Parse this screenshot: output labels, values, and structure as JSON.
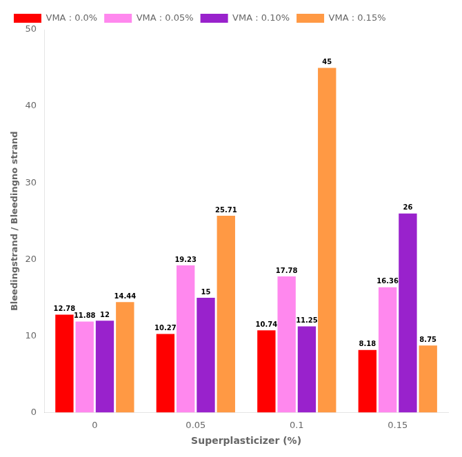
{
  "chart_data": {
    "type": "bar",
    "categories": [
      "0",
      "0.05",
      "0.1",
      "0.15"
    ],
    "series": [
      {
        "name": "VMA : 0.0%",
        "color": "#FF0000",
        "values": [
          12.78,
          10.27,
          10.74,
          8.18
        ]
      },
      {
        "name": "VMA : 0.05%",
        "color": "#FF88EE",
        "values": [
          11.88,
          19.23,
          17.78,
          16.36
        ]
      },
      {
        "name": "VMA : 0.10%",
        "color": "#9922CC",
        "values": [
          12,
          15,
          11.25,
          26
        ]
      },
      {
        "name": "VMA : 0.15%",
        "color": "#FF9944",
        "values": [
          14.44,
          25.71,
          45,
          8.75
        ]
      }
    ],
    "xlabel": "Superplasticizer (%)",
    "ylabel": "Bleedingstrand / Bleedingno strand",
    "ylim": [
      0,
      50
    ],
    "yticks": [
      0,
      10,
      20,
      30,
      40,
      50
    ],
    "grid": false,
    "legend": "upper left",
    "data_labels": true
  }
}
